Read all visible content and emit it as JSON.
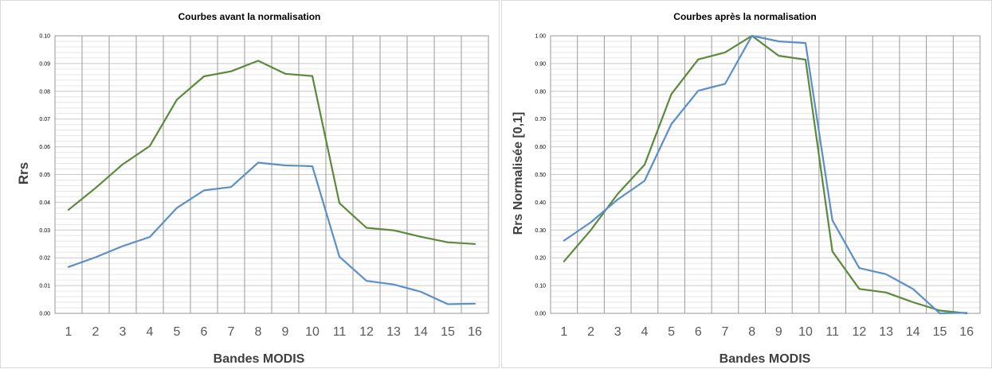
{
  "chart_data": [
    {
      "type": "line",
      "title": "Courbes avant la normalisation",
      "xlabel": "Bandes MODIS",
      "ylabel": "Rrs",
      "categories": [
        "1",
        "2",
        "3",
        "4",
        "5",
        "6",
        "7",
        "8",
        "9",
        "10",
        "11",
        "12",
        "13",
        "14",
        "15",
        "16"
      ],
      "ylim": [
        0,
        0.1
      ],
      "yticks": [
        "0.00",
        "0.01",
        "0.02",
        "0.03",
        "0.04",
        "0.05",
        "0.06",
        "0.07",
        "0.08",
        "0.09",
        "0.10"
      ],
      "grid": true,
      "series": [
        {
          "color": "#5a8a3a",
          "values": [
            0.0373,
            0.0452,
            0.0537,
            0.0603,
            0.077,
            0.0854,
            0.0872,
            0.091,
            0.0863,
            0.0855,
            0.0397,
            0.0308,
            0.0299,
            0.0276,
            0.0256,
            0.025
          ]
        },
        {
          "color": "#5b8fc9",
          "values": [
            0.0167,
            0.0202,
            0.0242,
            0.0275,
            0.038,
            0.0443,
            0.0455,
            0.0543,
            0.0533,
            0.053,
            0.0204,
            0.0117,
            0.0104,
            0.0078,
            0.0033,
            0.0035
          ]
        }
      ]
    },
    {
      "type": "line",
      "title": "Courbes après la normalisation",
      "xlabel": "Bandes MODIS",
      "ylabel": "Rrs Normalisée [0,1]",
      "categories": [
        "1",
        "2",
        "3",
        "4",
        "5",
        "6",
        "7",
        "8",
        "9",
        "10",
        "11",
        "12",
        "13",
        "14",
        "15",
        "16"
      ],
      "ylim": [
        0,
        1.0
      ],
      "yticks": [
        "0.00",
        "0.10",
        "0.20",
        "0.30",
        "0.40",
        "0.50",
        "0.60",
        "0.70",
        "0.80",
        "0.90",
        "1.00"
      ],
      "grid": true,
      "series": [
        {
          "color": "#5a8a3a",
          "values": [
            0.187,
            0.3,
            0.43,
            0.535,
            0.79,
            0.915,
            0.94,
            1.0,
            0.928,
            0.914,
            0.223,
            0.088,
            0.075,
            0.04,
            0.01,
            0.0
          ]
        },
        {
          "color": "#5b8fc9",
          "values": [
            0.262,
            0.328,
            0.41,
            0.477,
            0.682,
            0.802,
            0.827,
            1.0,
            0.98,
            0.974,
            0.335,
            0.163,
            0.141,
            0.088,
            0.0,
            0.002
          ]
        }
      ]
    }
  ]
}
